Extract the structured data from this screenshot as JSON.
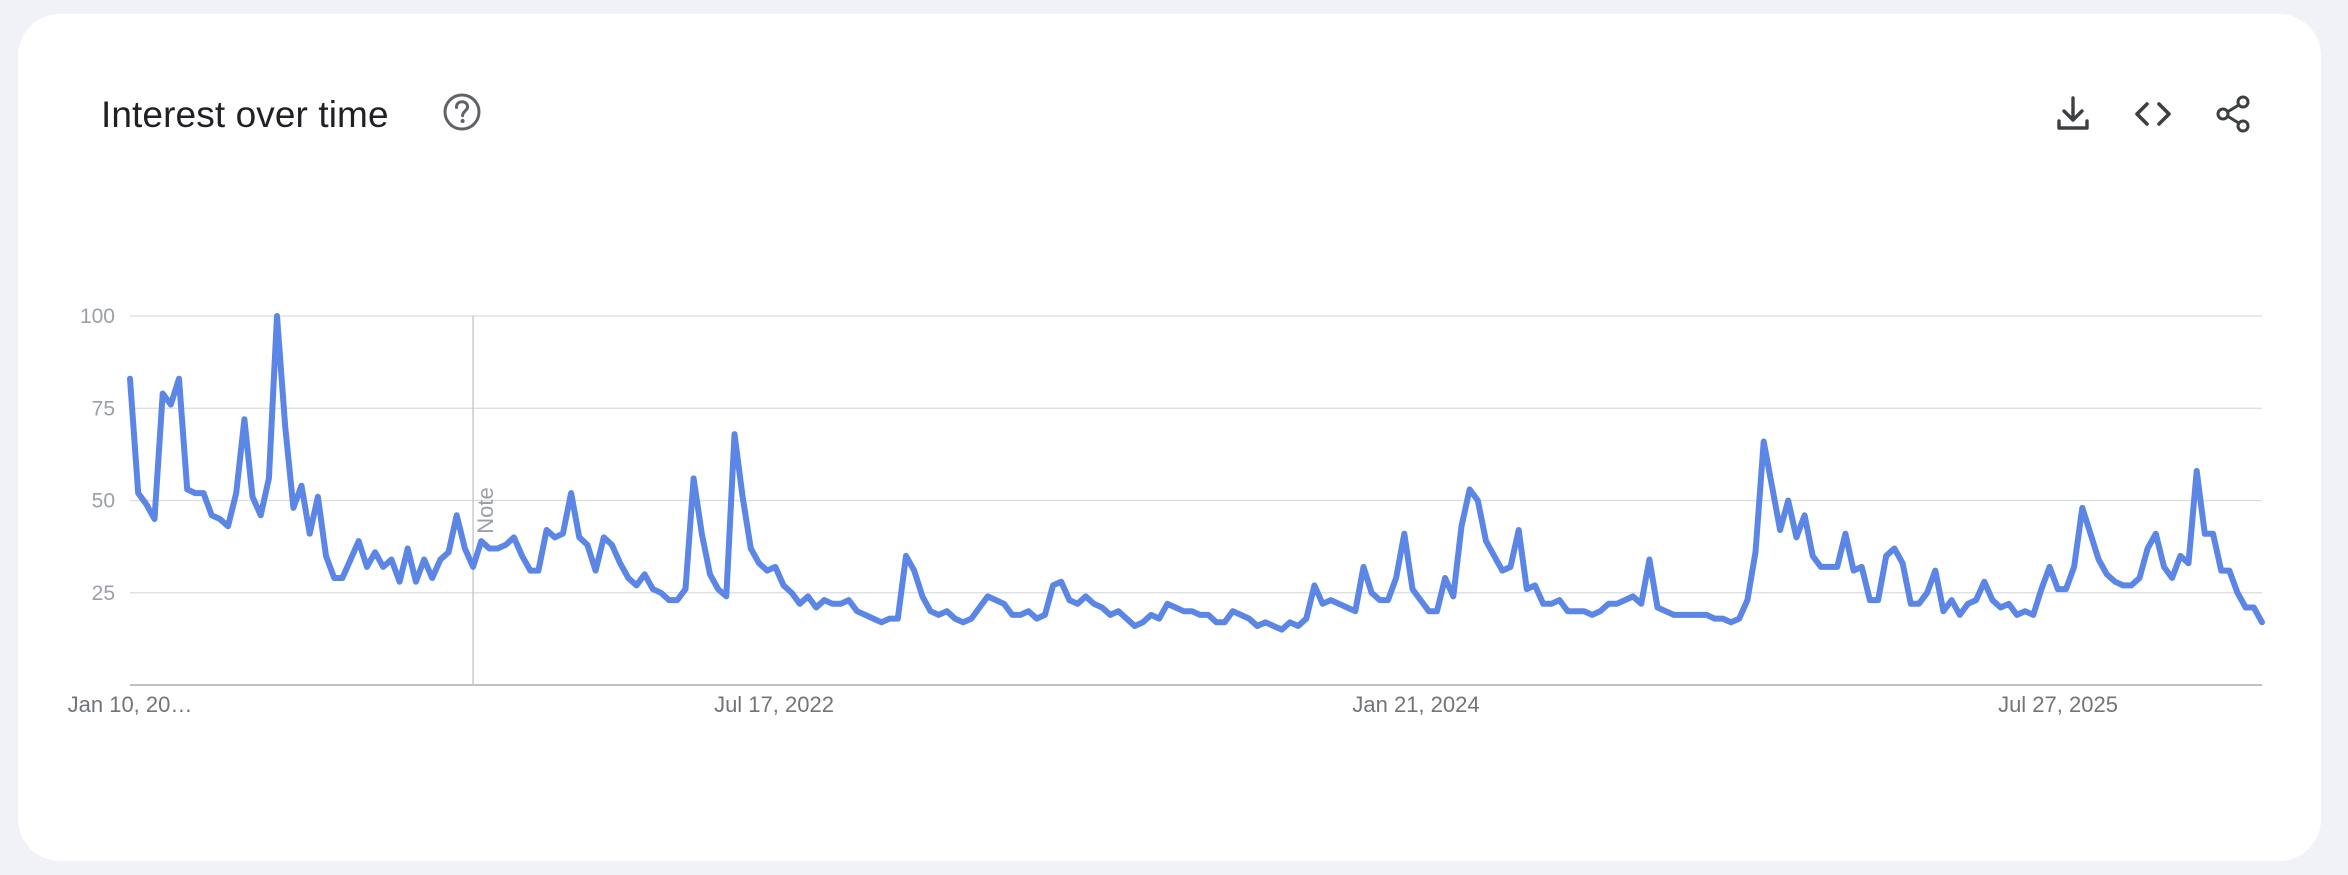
{
  "header": {
    "title": "Interest over time",
    "help_icon": "help-circle-icon",
    "actions": [
      {
        "name": "download-button",
        "icon": "download-icon"
      },
      {
        "name": "embed-button",
        "icon": "code-icon"
      },
      {
        "name": "share-button",
        "icon": "share-icon"
      }
    ]
  },
  "colors": {
    "line": "#5b86e5",
    "grid": "#dadce0",
    "axis": "#9aa0a6",
    "text": "#202124",
    "icon": "#3c4043"
  },
  "chart_data": {
    "type": "line",
    "title": "Interest over time",
    "ylim": [
      0,
      100
    ],
    "y_ticks": [
      25,
      50,
      75,
      100
    ],
    "x_tick_labels": [
      "Jan 10, 20…",
      "Jul 17, 2022",
      "Jan 21, 2024",
      "Jul 27, 2025"
    ],
    "grid": true,
    "note": {
      "label": "Note",
      "index": 42
    },
    "series": [
      {
        "values": [
          83,
          52,
          49,
          45,
          79,
          76,
          83,
          53,
          52,
          52,
          46,
          45,
          43,
          52,
          72,
          51,
          46,
          56,
          100,
          70,
          48,
          54,
          41,
          51,
          35,
          29,
          29,
          34,
          39,
          32,
          36,
          32,
          34,
          28,
          37,
          28,
          34,
          29,
          34,
          36,
          46,
          37,
          32,
          39,
          37,
          37,
          38,
          40,
          35,
          31,
          31,
          42,
          40,
          41,
          52,
          40,
          38,
          31,
          40,
          38,
          33,
          29,
          27,
          30,
          26,
          25,
          23,
          23,
          26,
          56,
          41,
          30,
          26,
          24,
          68,
          51,
          37,
          33,
          31,
          32,
          27,
          25,
          22,
          24,
          21,
          23,
          22,
          22,
          23,
          20,
          19,
          18,
          17,
          18,
          18,
          35,
          31,
          24,
          20,
          19,
          20,
          18,
          17,
          18,
          21,
          24,
          23,
          22,
          19,
          19,
          20,
          18,
          19,
          27,
          28,
          23,
          22,
          24,
          22,
          21,
          19,
          20,
          18,
          16,
          17,
          19,
          18,
          22,
          21,
          20,
          20,
          19,
          19,
          17,
          17,
          20,
          19,
          18,
          16,
          17,
          16,
          15,
          17,
          16,
          18,
          27,
          22,
          23,
          22,
          21,
          20,
          32,
          25,
          23,
          23,
          29,
          41,
          26,
          23,
          20,
          20,
          29,
          24,
          43,
          53,
          50,
          39,
          35,
          31,
          32,
          42,
          26,
          27,
          22,
          22,
          23,
          20,
          20,
          20,
          19,
          20,
          22,
          22,
          23,
          24,
          22,
          34,
          21,
          20,
          19,
          19,
          19,
          19,
          19,
          18,
          18,
          17,
          18,
          23,
          36,
          66,
          54,
          42,
          50,
          40,
          46,
          35,
          32,
          32,
          32,
          41,
          31,
          32,
          23,
          23,
          35,
          37,
          33,
          22,
          22,
          25,
          31,
          20,
          23,
          19,
          22,
          23,
          28,
          23,
          21,
          22,
          19,
          20,
          19,
          26,
          32,
          26,
          26,
          32,
          48,
          41,
          34,
          30,
          28,
          27,
          27,
          29,
          37,
          41,
          32,
          29,
          35,
          33,
          58,
          41,
          41,
          31,
          31,
          25,
          21,
          21,
          17
        ]
      }
    ]
  }
}
